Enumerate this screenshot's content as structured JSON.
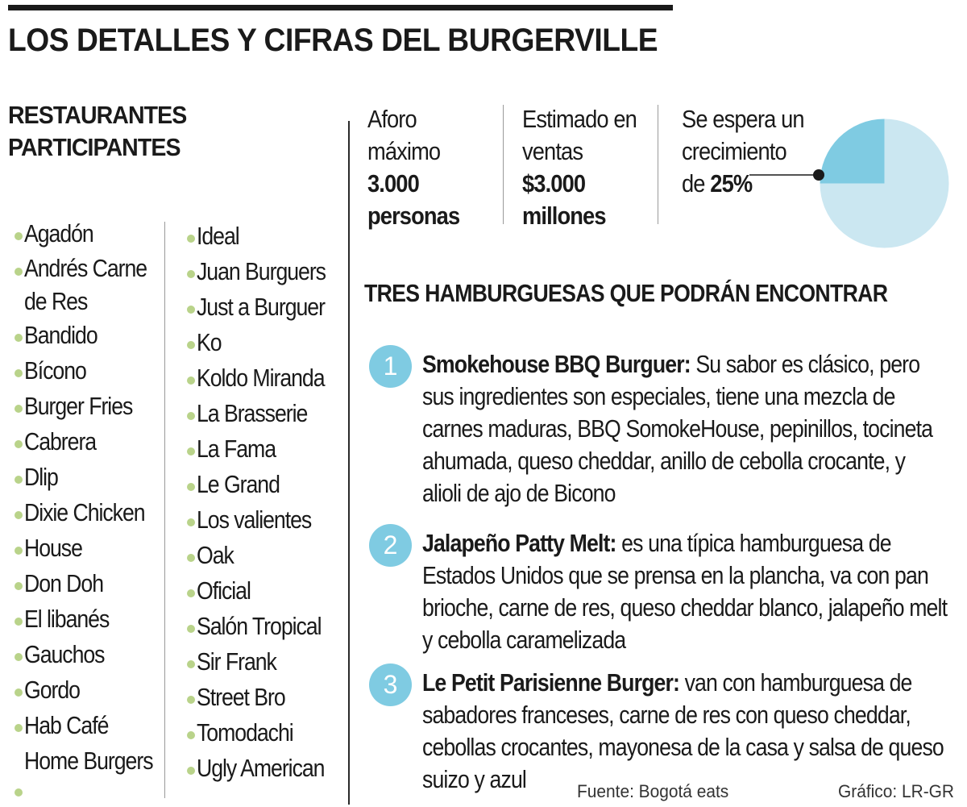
{
  "title": "LOS DETALLES Y  CIFRAS DEL BURGERVILLE",
  "restaurants": {
    "heading_line1": "RESTAURANTES",
    "heading_line2": "PARTICIPANTES",
    "column_a": [
      "Agadón",
      "Andrés Carne",
      "de Res",
      "Bandido",
      "Bícono",
      "Burger Fries",
      "Cabrera",
      "Dlip",
      "Dixie Chicken",
      "House",
      "Don Doh",
      "El libanés",
      "Gauchos",
      "Gordo",
      "Hab Café",
      "Home Burgers"
    ],
    "column_b": [
      "Ideal",
      "Juan Burguers",
      "Just a Burguer",
      "Ko",
      "Koldo Miranda",
      "La Brasserie",
      "La Fama",
      "Le Grand",
      "Los valientes",
      "Oak",
      "Oficial",
      "Salón Tropical",
      "Sir Frank",
      "Street Bro",
      "Tomodachi",
      "Ugly American"
    ]
  },
  "stats": {
    "aforo": {
      "line1": "Aforo",
      "line2": "máximo",
      "value1": "3.000",
      "value2": "personas"
    },
    "ventas": {
      "line1": "Estimado en",
      "line2": "ventas",
      "value1": "$3.000",
      "value2": "millones"
    },
    "crecimiento": {
      "line1": "Se espera un",
      "line2": "crecimiento",
      "line3_prefix": "de ",
      "value": "25%"
    }
  },
  "chart_data": {
    "type": "pie",
    "slices": [
      {
        "value": 25,
        "color": "#7fcbe2"
      },
      {
        "value": 75,
        "color": "#cbe7f1"
      }
    ]
  },
  "burgers": {
    "heading": "TRES  HAMBURGUESAS QUE PODRÁN ENCONTRAR",
    "items": [
      {
        "number": "1",
        "name": "Smokehouse BBQ Burguer:",
        "description": " Su sabor es clásico, pero sus ingredientes son especiales, tiene una mezcla de carnes maduras, BBQ SomokeHouse, pepinillos, tocineta ahumada, queso cheddar, anillo de cebolla crocante, y alioli de ajo de Bicono"
      },
      {
        "number": "2",
        "name": "Jalapeño Patty Melt:",
        "description": " es una típica hamburguesa de Estados Unidos que se prensa en la plancha, va con pan brioche, carne de res, queso cheddar blanco, jalapeño melt y cebolla caramelizada"
      },
      {
        "number": "3",
        "name": "Le Petit Parisienne Burger:",
        "description": " van con hamburguesa de sabadores franceses, carne de res con queso cheddar, cebollas crocantes, mayonesa de la casa y salsa de queso suizo y azul"
      }
    ]
  },
  "footer": {
    "source": "Fuente: Bogotá eats",
    "credit": "Gráfico: LR-GR"
  },
  "colors": {
    "accent_blue": "#7fcbe2",
    "light_blue": "#cbe7f1",
    "bullet_green": "#b9d38a",
    "text": "#1a1a1a"
  }
}
